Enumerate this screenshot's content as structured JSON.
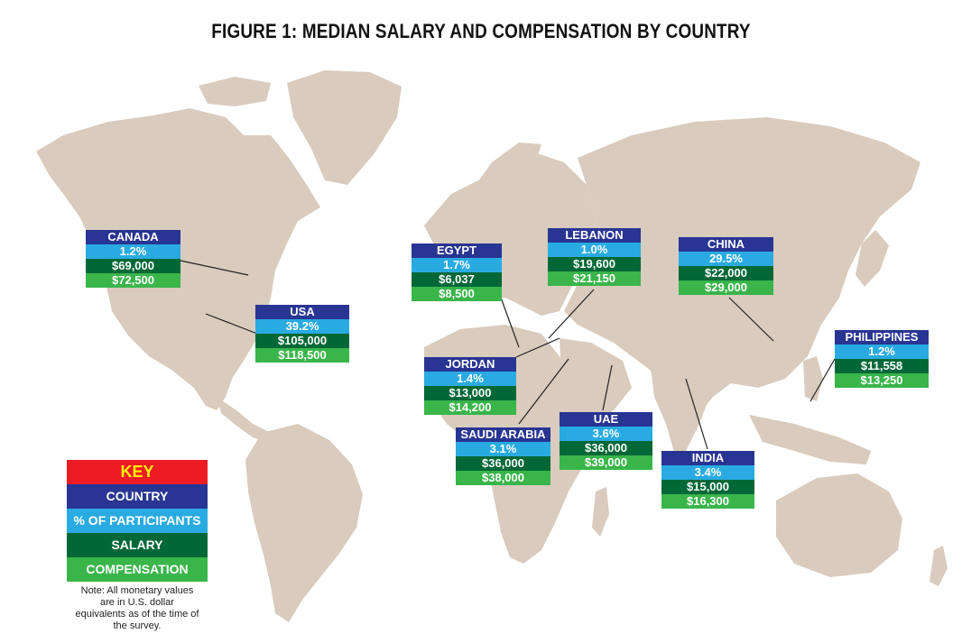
{
  "title": "FIGURE 1: MEDIAN SALARY AND COMPENSATION BY COUNTRY",
  "colors": {
    "land": "#d9cbbd",
    "country": "#283593",
    "participants": "#29abe2",
    "salary": "#006837",
    "compensation": "#39b54a",
    "key_header": "#ed1c24",
    "key_header_text": "#fff200"
  },
  "key": {
    "header": "KEY",
    "country": "COUNTRY",
    "participants": "% OF PARTICIPANTS",
    "salary": "SALARY",
    "compensation": "COMPENSATION",
    "note": "Note: All monetary values are in U.S. dollar equivalents as of the time of the survey."
  },
  "countries": [
    {
      "name": "CANADA",
      "participants": "1.2%",
      "salary": "$69,000",
      "compensation": "$72,500"
    },
    {
      "name": "USA",
      "participants": "39.2%",
      "salary": "$105,000",
      "compensation": "$118,500"
    },
    {
      "name": "EGYPT",
      "participants": "1.7%",
      "salary": "$6,037",
      "compensation": "$8,500"
    },
    {
      "name": "LEBANON",
      "participants": "1.0%",
      "salary": "$19,600",
      "compensation": "$21,150"
    },
    {
      "name": "CHINA",
      "participants": "29.5%",
      "salary": "$22,000",
      "compensation": "$29,000"
    },
    {
      "name": "PHILIPPINES",
      "participants": "1.2%",
      "salary": "$11,558",
      "compensation": "$13,250"
    },
    {
      "name": "JORDAN",
      "participants": "1.4%",
      "salary": "$13,000",
      "compensation": "$14,200"
    },
    {
      "name": "SAUDI ARABIA",
      "participants": "3.1%",
      "salary": "$36,000",
      "compensation": "$38,000"
    },
    {
      "name": "UAE",
      "participants": "3.6%",
      "salary": "$36,000",
      "compensation": "$39,000"
    },
    {
      "name": "INDIA",
      "participants": "3.4%",
      "salary": "$15,000",
      "compensation": "$16,300"
    }
  ]
}
